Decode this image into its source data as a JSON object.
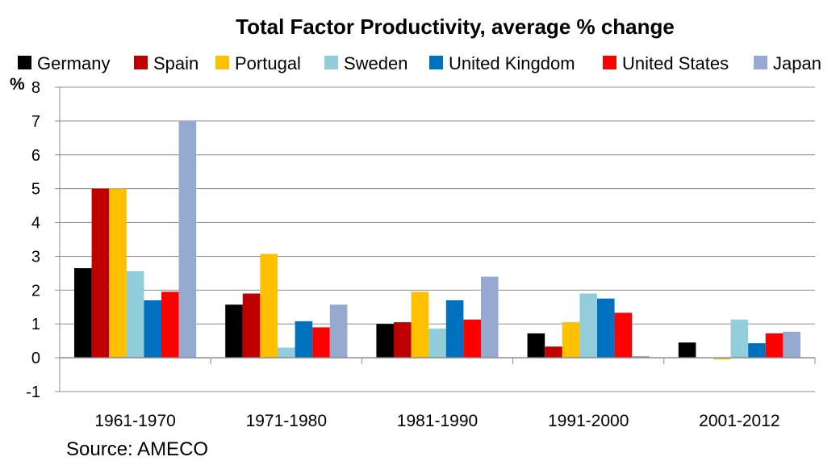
{
  "chart_data": {
    "type": "bar",
    "title": "Total Factor Productivity, average % change",
    "ylabel": "%",
    "ylim": [
      -1,
      8
    ],
    "yticks": [
      "-1",
      "0",
      "1",
      "2",
      "3",
      "4",
      "5",
      "6",
      "7",
      "8"
    ],
    "categories": [
      "1961-1970",
      "1971-1980",
      "1981-1990",
      "1991-2000",
      "2001-2012"
    ],
    "series": [
      {
        "name": "Germany",
        "color": "#000000",
        "values": [
          2.65,
          1.57,
          1.0,
          0.72,
          0.45
        ]
      },
      {
        "name": "Spain",
        "color": "#C00000",
        "values": [
          5.0,
          1.9,
          1.05,
          0.33,
          0.0
        ]
      },
      {
        "name": "Portugal",
        "color": "#FFC000",
        "values": [
          5.0,
          3.07,
          1.95,
          1.05,
          -0.05
        ]
      },
      {
        "name": "Sweden",
        "color": "#92CDDC",
        "values": [
          2.56,
          0.3,
          0.86,
          1.9,
          1.13
        ]
      },
      {
        "name": "United Kingdom",
        "color": "#0070C0",
        "values": [
          1.7,
          1.08,
          1.7,
          1.75,
          0.43
        ]
      },
      {
        "name": "United States",
        "color": "#FF0000",
        "values": [
          1.95,
          0.9,
          1.13,
          1.33,
          0.72
        ]
      },
      {
        "name": "Japan",
        "color": "#95A9D1",
        "values": [
          7.0,
          1.57,
          2.4,
          0.05,
          0.77
        ]
      }
    ],
    "grid": true,
    "legend": "top",
    "source": "Source: AMECO"
  }
}
